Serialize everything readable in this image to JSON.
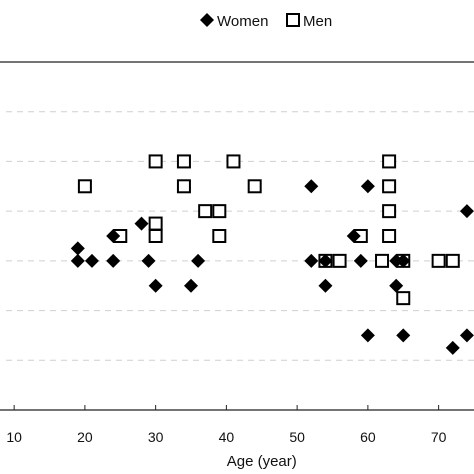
{
  "chart_data": {
    "type": "scatter",
    "xlabel": "Age (year)",
    "ylabel": "",
    "xlim": [
      8,
      75
    ],
    "ylim": [
      0,
      7
    ],
    "xticks": [
      10,
      20,
      30,
      40,
      50,
      60,
      70
    ],
    "yticks": [
      1,
      2,
      3,
      4,
      5,
      6
    ],
    "grid": "y-dashed",
    "legend": "top-center",
    "series": [
      {
        "name": "Women",
        "marker": "diamond-filled",
        "color": "#000000",
        "points": [
          [
            19,
            3.25
          ],
          [
            19,
            3.0
          ],
          [
            21,
            3.0
          ],
          [
            24,
            3.0
          ],
          [
            24,
            3.5
          ],
          [
            28,
            3.75
          ],
          [
            29,
            3.0
          ],
          [
            30,
            2.5
          ],
          [
            35,
            2.5
          ],
          [
            36,
            3.0
          ],
          [
            52,
            4.5
          ],
          [
            52,
            3.0
          ],
          [
            54,
            3.0
          ],
          [
            54,
            2.5
          ],
          [
            58,
            3.5
          ],
          [
            59,
            3.0
          ],
          [
            60,
            4.5
          ],
          [
            60,
            1.5
          ],
          [
            64,
            3.0
          ],
          [
            64,
            2.5
          ],
          [
            65,
            3.0
          ],
          [
            65,
            1.5
          ],
          [
            72,
            1.25
          ],
          [
            74,
            4.0
          ],
          [
            74,
            1.5
          ]
        ]
      },
      {
        "name": "Men",
        "marker": "square-open",
        "color": "#000000",
        "points": [
          [
            20,
            4.5
          ],
          [
            25,
            3.5
          ],
          [
            30,
            5.0
          ],
          [
            30,
            3.75
          ],
          [
            30,
            3.5
          ],
          [
            34,
            5.0
          ],
          [
            34,
            4.5
          ],
          [
            37,
            4.0
          ],
          [
            39,
            4.0
          ],
          [
            39,
            3.5
          ],
          [
            41,
            5.0
          ],
          [
            44,
            4.5
          ],
          [
            54,
            3.0
          ],
          [
            56,
            3.0
          ],
          [
            59,
            3.5
          ],
          [
            63,
            5.0
          ],
          [
            63,
            4.5
          ],
          [
            63,
            4.0
          ],
          [
            63,
            3.5
          ],
          [
            62,
            3.0
          ],
          [
            65,
            3.0
          ],
          [
            65,
            2.25
          ],
          [
            70,
            3.0
          ],
          [
            72,
            3.0
          ]
        ]
      }
    ]
  }
}
